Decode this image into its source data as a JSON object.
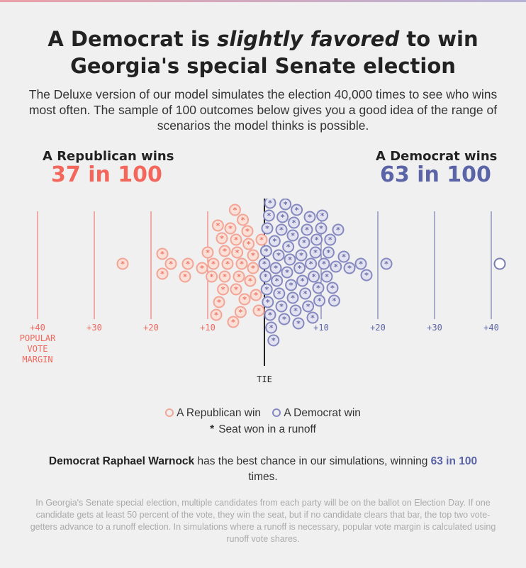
{
  "header": {
    "title_line1_pre": "A Democrat is",
    "title_line1_em": "slightly favored",
    "title_line1_post": "to win",
    "title_line2": "Georgia's special Senate election",
    "subtitle": "The Deluxe version of our model simulates the election 40,000 times to see who wins most often. The sample of 100 outcomes below gives you a good idea of the range of scenarios the model thinks is possible."
  },
  "republican": {
    "label": "A Republican wins",
    "count": "37 in 100",
    "color": "#f2665c"
  },
  "democrat": {
    "label": "A Democrat wins",
    "count": "63 in 100",
    "color": "#5b64a6"
  },
  "chart_data": {
    "type": "scatter",
    "description_note": "",
    "x_range": [
      -40,
      40
    ],
    "ticks_left": [
      "+40",
      "+30",
      "+20",
      "+10"
    ],
    "ticks_right": [
      "+10",
      "+20",
      "+30",
      "+40"
    ],
    "axis_label": [
      "POPULAR",
      "VOTE",
      "MARGIN"
    ],
    "center_label": "TIE",
    "republican_color": "#f2665c",
    "democrat_color": "#8589c0",
    "republican_margins": [
      -25.0,
      -18.0,
      -18.0,
      -16.5,
      -14.0,
      -13.5,
      -11.0,
      -10.0,
      -9.3,
      -9.0,
      -8.5,
      -8.2,
      -8.0,
      -7.5,
      -7.3,
      -7.0,
      -7.0,
      -6.5,
      -6.0,
      -5.5,
      -5.2,
      -5.0,
      -5.0,
      -4.8,
      -4.5,
      -4.2,
      -4.0,
      -3.8,
      -3.5,
      -3.0,
      -2.8,
      -2.5,
      -2.0,
      -2.0,
      -1.5,
      -1.0,
      -0.5
    ],
    "democrat_margins": [
      0.0,
      0.2,
      0.3,
      0.4,
      0.5,
      0.6,
      0.8,
      1.0,
      1.0,
      1.2,
      1.5,
      1.6,
      1.8,
      2.0,
      2.2,
      2.5,
      2.6,
      3.0,
      3.0,
      3.2,
      3.5,
      3.7,
      4.0,
      4.2,
      4.5,
      4.7,
      5.0,
      5.0,
      5.2,
      5.5,
      5.7,
      6.0,
      6.2,
      6.5,
      6.7,
      7.0,
      7.2,
      7.5,
      7.7,
      8.0,
      8.2,
      8.5,
      8.7,
      9.0,
      9.2,
      9.5,
      9.7,
      10.0,
      10.2,
      10.5,
      11.0,
      11.3,
      11.6,
      12.0,
      12.3,
      12.6,
      13.0,
      14.0,
      15.0,
      17.0,
      18.0,
      21.5,
      41.5
    ],
    "democrat_no_runoff": [
      41.5
    ]
  },
  "legend": {
    "republican_label": "A Republican win",
    "democrat_label": "A Democrat win",
    "runoff_label": "Seat won in a runoff",
    "runoff_symbol": "*"
  },
  "summary": {
    "name": "Democrat Raphael Warnock",
    "middle": "has the best chance in our simulations, winning",
    "count": "63 in 100",
    "end": "times."
  },
  "footnote": "In Georgia's Senate special election, multiple candidates from each party will be on the ballot on Election Day. If one candidate gets at least 50 percent of the vote, they win the seat, but if no candidate clears that bar, the top two vote-getters advance to a runoff election. In simulations where a runoff is necessary, popular vote margin is calculated using runoff vote shares."
}
